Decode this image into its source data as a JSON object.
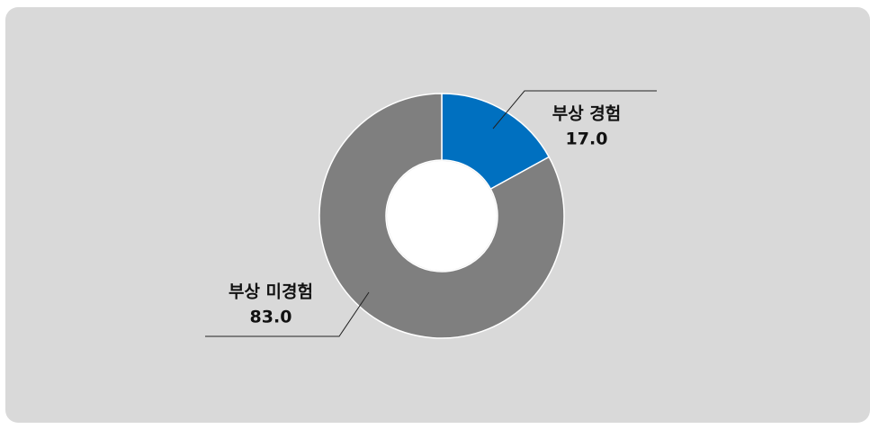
{
  "chart_data": {
    "type": "donut",
    "categories": [
      "부상 경험",
      "부상 미경험"
    ],
    "values": [
      17,
      83
    ],
    "value_labels": [
      "17.0",
      "83.0"
    ],
    "colors": [
      "#0070c0",
      "#7f7f7f"
    ]
  }
}
